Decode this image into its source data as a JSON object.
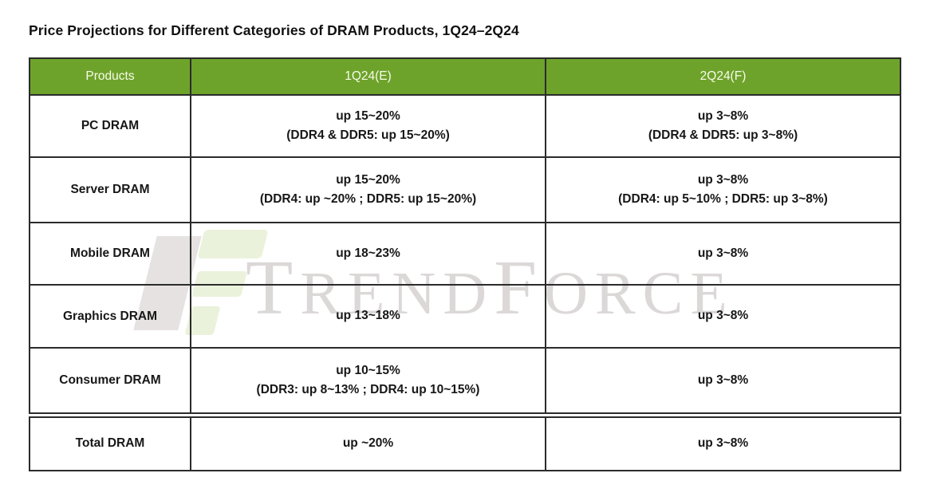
{
  "title": "Price Projections for Different Categories of DRAM Products, 1Q24–2Q24",
  "watermark": {
    "brand": "TrendForce",
    "t": "T",
    "rend": "REND",
    "f": "F",
    "orce": "ORCE"
  },
  "colors": {
    "header_green": "#6ea32b",
    "header_text": "#f7fbe9",
    "border": "#2b2b2b",
    "body_text": "#171717",
    "watermark_text": "#dcd8d8",
    "watermark_green": "#eaf2dc",
    "watermark_gray": "#e6e2e2"
  },
  "table": {
    "columns": [
      "Products",
      "1Q24(E)",
      "2Q24(F)"
    ],
    "rows": [
      {
        "product": "PC DRAM",
        "q1_main": "up 15~20%",
        "q1_sub": "(DDR4 & DDR5: up 15~20%)",
        "q2_main": "up 3~8%",
        "q2_sub": "(DDR4 & DDR5: up 3~8%)"
      },
      {
        "product": "Server DRAM",
        "q1_main": "up 15~20%",
        "q1_sub": "(DDR4: up ~20% ; DDR5: up 15~20%)",
        "q2_main": "up 3~8%",
        "q2_sub": "(DDR4: up 5~10% ; DDR5: up 3~8%)"
      },
      {
        "product": "Mobile DRAM",
        "q1_main": "up 18~23%",
        "q1_sub": "",
        "q2_main": "up 3~8%",
        "q2_sub": ""
      },
      {
        "product": "Graphics DRAM",
        "q1_main": "up 13~18%",
        "q1_sub": "",
        "q2_main": "up 3~8%",
        "q2_sub": ""
      },
      {
        "product": "Consumer DRAM",
        "q1_main": "up 10~15%",
        "q1_sub": "(DDR3: up 8~13% ; DDR4: up 10~15%)",
        "q2_main": "up 3~8%",
        "q2_sub": ""
      },
      {
        "product": "Total DRAM",
        "q1_main": "up ~20%",
        "q1_sub": "",
        "q2_main": "up 3~8%",
        "q2_sub": ""
      }
    ]
  },
  "chart_data": {
    "type": "table",
    "title": "Price Projections for Different Categories of DRAM Products, 1Q24–2Q24",
    "columns": [
      "Products",
      "1Q24(E)",
      "2Q24(F)"
    ],
    "rows": [
      [
        "PC DRAM",
        "up 15~20% (DDR4 & DDR5: up 15~20%)",
        "up 3~8% (DDR4 & DDR5: up 3~8%)"
      ],
      [
        "Server DRAM",
        "up 15~20% (DDR4: up ~20% ; DDR5: up 15~20%)",
        "up 3~8% (DDR4: up 5~10% ; DDR5: up 3~8%)"
      ],
      [
        "Mobile DRAM",
        "up 18~23%",
        "up 3~8%"
      ],
      [
        "Graphics DRAM",
        "up 13~18%",
        "up 3~8%"
      ],
      [
        "Consumer DRAM",
        "up 10~15% (DDR3: up 8~13% ; DDR4: up 10~15%)",
        "up 3~8%"
      ],
      [
        "Total DRAM",
        "up ~20%",
        "up 3~8%"
      ]
    ]
  }
}
